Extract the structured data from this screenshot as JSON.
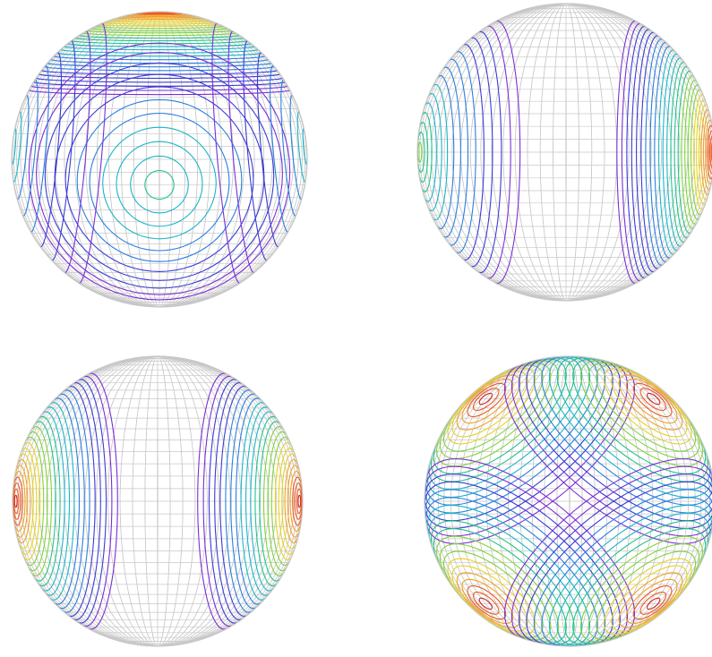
{
  "figure": {
    "kind": "spherical-contour-grid",
    "background": "#ffffff",
    "grid_color": "#c8c8c8",
    "contour_palette": [
      "#7b2fd6",
      "#3b3bd6",
      "#2a7fe0",
      "#19b6c8",
      "#22c48a",
      "#7fd43a",
      "#e6d21f",
      "#f2a020",
      "#ee5a1f",
      "#d62020"
    ],
    "panels": [
      {
        "id": "top-left",
        "lobes": [
          {
            "lat": 88,
            "lon": 0,
            "peak": 1.0,
            "rings": 34
          },
          {
            "lat": -10,
            "lon": 0,
            "peak": 0.45,
            "rings": 11
          },
          {
            "lat": 5,
            "lon": -85,
            "peak": 0.4,
            "rings": 9
          },
          {
            "lat": 5,
            "lon": 85,
            "peak": 0.4,
            "rings": 9
          }
        ]
      },
      {
        "id": "top-right",
        "lobes": [
          {
            "lat": 0,
            "lon": -80,
            "peak": 0.55,
            "rings": 16
          },
          {
            "lat": 0,
            "lon": 82,
            "peak": 1.0,
            "rings": 30
          }
        ]
      },
      {
        "id": "bottom-left",
        "lobes": [
          {
            "lat": 0,
            "lon": -78,
            "peak": 1.0,
            "rings": 26
          },
          {
            "lat": 0,
            "lon": 78,
            "peak": 1.0,
            "rings": 26
          }
        ]
      },
      {
        "id": "bottom-right",
        "lobes": [
          {
            "lat": 45,
            "lon": -55,
            "peak": 1.0,
            "rings": 20
          },
          {
            "lat": 45,
            "lon": 55,
            "peak": 1.0,
            "rings": 20
          },
          {
            "lat": -45,
            "lon": -55,
            "peak": 1.0,
            "rings": 20
          },
          {
            "lat": -45,
            "lon": 55,
            "peak": 1.0,
            "rings": 20
          }
        ]
      }
    ]
  }
}
